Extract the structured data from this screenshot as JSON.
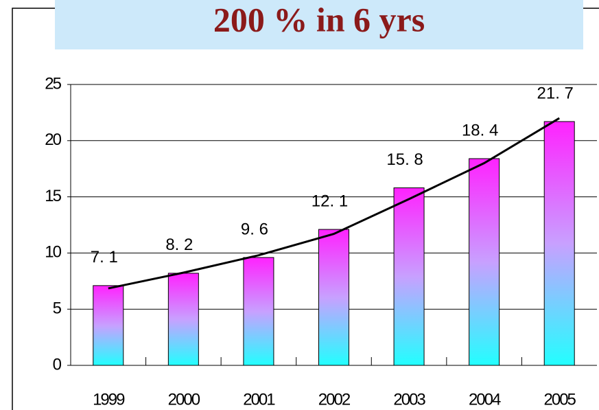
{
  "chart_data": {
    "type": "bar",
    "title": "200 % in 6 yrs",
    "categories": [
      "1999",
      "2000",
      "2001",
      "2002",
      "2003",
      "2004",
      "2005"
    ],
    "values": [
      7.1,
      8.2,
      9.6,
      12.1,
      15.8,
      18.4,
      21.7
    ],
    "value_labels": [
      "7. 1",
      "8. 2",
      "9. 6",
      "12. 1",
      "15. 8",
      "18. 4",
      "21. 7"
    ],
    "color_top": "#ff22ff",
    "color_bottom": "#22ffff",
    "trend": {
      "color": "#000000",
      "values": [
        6.85,
        8.25,
        9.8,
        11.7,
        14.8,
        18.0,
        22.0
      ]
    },
    "ylim": [
      0,
      25
    ],
    "yticks": [
      0,
      5,
      10,
      15,
      20,
      25
    ],
    "grid": true
  }
}
